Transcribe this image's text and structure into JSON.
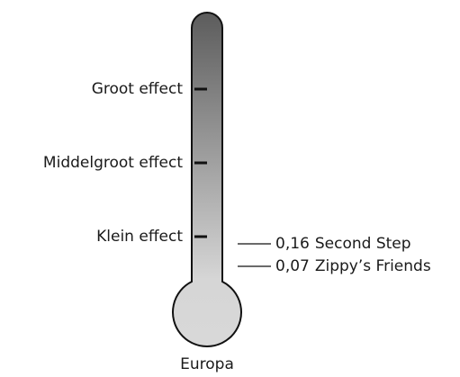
{
  "scale_labels": [
    "Groot effect",
    "Middelgroot effect",
    "Klein effect"
  ],
  "annotations": [
    {
      "value": "0,16",
      "label": "Second Step"
    },
    {
      "value": "0,07",
      "label": "Zippy’s Friends"
    }
  ],
  "footer": "Europa"
}
